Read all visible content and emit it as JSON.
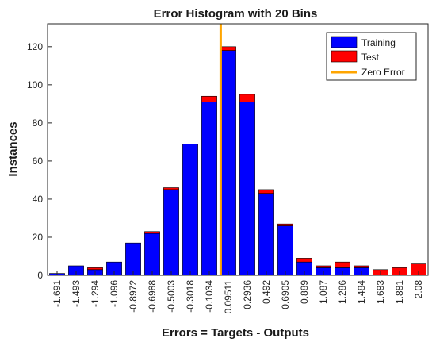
{
  "chart_data": {
    "type": "bar",
    "title": "Error Histogram with 20 Bins",
    "xlabel": "Errors = Targets - Outputs",
    "ylabel": "Instances",
    "ylim": [
      0,
      132
    ],
    "yticks": [
      0,
      20,
      40,
      60,
      80,
      100,
      120
    ],
    "categories": [
      "-1.691",
      "-1.493",
      "-1.294",
      "-1.096",
      "-0.8972",
      "-0.6988",
      "-0.5003",
      "-0.3018",
      "-0.1034",
      "0.09511",
      "0.2936",
      "0.492",
      "0.6905",
      "0.889",
      "1.087",
      "1.286",
      "1.484",
      "1.683",
      "1.881",
      "2.08"
    ],
    "stacked": true,
    "series": [
      {
        "name": "Training",
        "color": "#0000ff",
        "values": [
          1,
          5,
          3,
          7,
          17,
          22,
          45,
          69,
          91,
          118,
          91,
          43,
          26,
          7,
          4,
          4,
          4,
          0,
          0,
          0
        ]
      },
      {
        "name": "Test",
        "color": "#ff0000",
        "values": [
          0,
          0,
          1,
          0,
          0,
          1,
          1,
          0,
          3,
          2,
          4,
          2,
          1,
          2,
          1,
          3,
          1,
          3,
          4,
          6
        ]
      }
    ],
    "reference_line": {
      "name": "Zero Error",
      "color": "#ffa500",
      "category": "0.09511",
      "position": "left edge of bin"
    },
    "legend": {
      "position": "top-right",
      "entries": [
        "Training",
        "Test",
        "Zero Error"
      ]
    },
    "grid": false
  }
}
